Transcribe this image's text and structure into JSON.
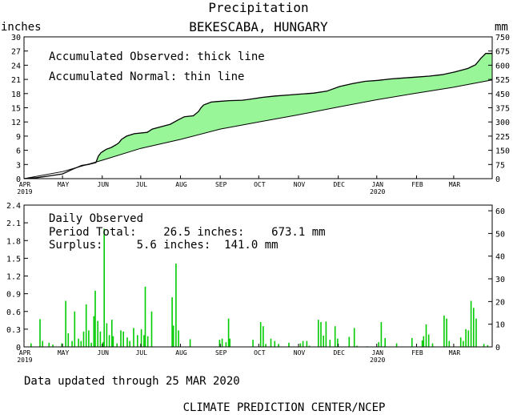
{
  "chart_data": [
    {
      "type": "area",
      "title": "Precipitation",
      "subtitle": "BEKESCABA, HUNGARY",
      "ylabel_left": "inches",
      "ylabel_right": "mm",
      "ylim": [
        0,
        30
      ],
      "y2lim": [
        0,
        750
      ],
      "yticks": [
        "0",
        "3",
        "6",
        "9",
        "12",
        "15",
        "18",
        "21",
        "24",
        "27",
        "30"
      ],
      "y2ticks": [
        "0",
        "75",
        "150",
        "225",
        "300",
        "375",
        "450",
        "525",
        "600",
        "675",
        "750"
      ],
      "annotations": [
        "Accumulated Observed: thick line",
        "Accumulated Normal: thin line"
      ],
      "months": [
        "APR",
        "MAY",
        "JUN",
        "JUL",
        "AUG",
        "SEP",
        "OCT",
        "NOV",
        "DEC",
        "JAN",
        "FEB",
        "MAR"
      ],
      "year_labels": [
        {
          "month_index": 0,
          "text": "2019"
        },
        {
          "month_index": 9,
          "text": "2020"
        }
      ],
      "x_unit": "day of period (0 = 1 Apr 2019)",
      "x_max": 365,
      "observed": [
        [
          0,
          0
        ],
        [
          10,
          0.2
        ],
        [
          20,
          0.6
        ],
        [
          30,
          1.0
        ],
        [
          38,
          2.0
        ],
        [
          45,
          2.8
        ],
        [
          50,
          3.0
        ],
        [
          56,
          3.4
        ],
        [
          58,
          4.8
        ],
        [
          60,
          5.5
        ],
        [
          64,
          6.2
        ],
        [
          68,
          6.6
        ],
        [
          72,
          7.2
        ],
        [
          74,
          7.6
        ],
        [
          76,
          8.3
        ],
        [
          80,
          9.0
        ],
        [
          86,
          9.5
        ],
        [
          96,
          9.8
        ],
        [
          100,
          10.5
        ],
        [
          107,
          11.0
        ],
        [
          114,
          11.5
        ],
        [
          120,
          12.4
        ],
        [
          125,
          13.1
        ],
        [
          132,
          13.3
        ],
        [
          136,
          14.2
        ],
        [
          138,
          15.0
        ],
        [
          140,
          15.6
        ],
        [
          146,
          16.2
        ],
        [
          150,
          16.3
        ],
        [
          160,
          16.5
        ],
        [
          170,
          16.6
        ],
        [
          176,
          16.8
        ],
        [
          186,
          17.2
        ],
        [
          196,
          17.5
        ],
        [
          206,
          17.7
        ],
        [
          216,
          17.9
        ],
        [
          226,
          18.1
        ],
        [
          236,
          18.5
        ],
        [
          246,
          19.5
        ],
        [
          256,
          20.1
        ],
        [
          266,
          20.6
        ],
        [
          276,
          20.8
        ],
        [
          286,
          21.1
        ],
        [
          296,
          21.3
        ],
        [
          306,
          21.5
        ],
        [
          316,
          21.7
        ],
        [
          326,
          22.0
        ],
        [
          336,
          22.6
        ],
        [
          346,
          23.3
        ],
        [
          352,
          24.1
        ],
        [
          356,
          25.4
        ],
        [
          360,
          26.5
        ],
        [
          365,
          26.5
        ]
      ],
      "normal": [
        [
          0,
          0
        ],
        [
          30,
          1.5
        ],
        [
          61,
          3.9
        ],
        [
          91,
          6.4
        ],
        [
          122,
          8.3
        ],
        [
          153,
          10.5
        ],
        [
          183,
          12.0
        ],
        [
          214,
          13.5
        ],
        [
          244,
          15.1
        ],
        [
          275,
          16.7
        ],
        [
          306,
          18.1
        ],
        [
          334,
          19.3
        ],
        [
          365,
          20.9
        ]
      ]
    },
    {
      "type": "bar",
      "title": "Daily Observed",
      "ylim": [
        0,
        2.4
      ],
      "y2lim": [
        0,
        62.5
      ],
      "yticks": [
        "0",
        "0.3",
        "0.6",
        "0.9",
        "1.2",
        "1.5",
        "1.8",
        "2.1",
        "2.4"
      ],
      "y2ticks": [
        "0",
        "10",
        "20",
        "30",
        "40",
        "50",
        "60"
      ],
      "annotation_lines": [
        "Daily Observed",
        "Period Total:    26.5 inches:    673.1 mm",
        "Surplus:     5.6 inches:  141.0 mm"
      ],
      "months": [
        "APR",
        "MAY",
        "JUN",
        "JUL",
        "AUG",
        "SEP",
        "OCT",
        "NOV",
        "DEC",
        "JAN",
        "FEB",
        "MAR"
      ],
      "year_labels": [
        {
          "month_index": 0,
          "text": "2019"
        },
        {
          "month_index": 9,
          "text": "2020"
        }
      ],
      "x_unit": "day of period (0 = 1 Apr 2019)",
      "x_max": 365,
      "values": [
        [
          5,
          0.06
        ],
        [
          12,
          0.47
        ],
        [
          14,
          0.1
        ],
        [
          19,
          0.07
        ],
        [
          22,
          0.04
        ],
        [
          29,
          0.06
        ],
        [
          32,
          0.78
        ],
        [
          34,
          0.23
        ],
        [
          37,
          0.1
        ],
        [
          39,
          0.6
        ],
        [
          42,
          0.14
        ],
        [
          44,
          0.1
        ],
        [
          46,
          0.26
        ],
        [
          48,
          0.72
        ],
        [
          50,
          0.28
        ],
        [
          52,
          0.07
        ],
        [
          54,
          0.52
        ],
        [
          55,
          0.95
        ],
        [
          57,
          0.44
        ],
        [
          59,
          0.26
        ],
        [
          61,
          0.08
        ],
        [
          62,
          2.0
        ],
        [
          64,
          0.4
        ],
        [
          66,
          0.2
        ],
        [
          68,
          0.46
        ],
        [
          69,
          0.18
        ],
        [
          72,
          0.06
        ],
        [
          75,
          0.28
        ],
        [
          77,
          0.26
        ],
        [
          80,
          0.16
        ],
        [
          82,
          0.1
        ],
        [
          85,
          0.32
        ],
        [
          88,
          0.2
        ],
        [
          91,
          0.3
        ],
        [
          93,
          0.2
        ],
        [
          94,
          1.02
        ],
        [
          96,
          0.18
        ],
        [
          99,
          0.6
        ],
        [
          115,
          0.84
        ],
        [
          116,
          0.36
        ],
        [
          118,
          1.41
        ],
        [
          120,
          0.28
        ],
        [
          129,
          0.13
        ],
        [
          152,
          0.12
        ],
        [
          154,
          0.14
        ],
        [
          157,
          0.08
        ],
        [
          159,
          0.48
        ],
        [
          160,
          0.14
        ],
        [
          178,
          0.12
        ],
        [
          184,
          0.42
        ],
        [
          186,
          0.35
        ],
        [
          188,
          0.05
        ],
        [
          192,
          0.14
        ],
        [
          195,
          0.1
        ],
        [
          198,
          0.05
        ],
        [
          206,
          0.07
        ],
        [
          215,
          0.06
        ],
        [
          217,
          0.1
        ],
        [
          220,
          0.1
        ],
        [
          222,
          0.02
        ],
        [
          229,
          0.46
        ],
        [
          231,
          0.42
        ],
        [
          233,
          0.19
        ],
        [
          235,
          0.43
        ],
        [
          238,
          0.12
        ],
        [
          242,
          0.35
        ],
        [
          244,
          0.14
        ],
        [
          253,
          0.17
        ],
        [
          257,
          0.32
        ],
        [
          259,
          0.02
        ],
        [
          267,
          0.01
        ],
        [
          276,
          0.08
        ],
        [
          278,
          0.42
        ],
        [
          281,
          0.15
        ],
        [
          290,
          0.06
        ],
        [
          302,
          0.15
        ],
        [
          310,
          0.11
        ],
        [
          311,
          0.18
        ],
        [
          313,
          0.38
        ],
        [
          315,
          0.21
        ],
        [
          318,
          0.06
        ],
        [
          327,
          0.53
        ],
        [
          329,
          0.48
        ],
        [
          331,
          0.1
        ],
        [
          340,
          0.16
        ],
        [
          342,
          0.1
        ],
        [
          344,
          0.3
        ],
        [
          346,
          0.28
        ],
        [
          348,
          0.78
        ],
        [
          350,
          0.66
        ],
        [
          352,
          0.48
        ],
        [
          358,
          0.05
        ],
        [
          361,
          0.03
        ]
      ]
    }
  ],
  "footer": {
    "updated": "Data updated through 25 MAR 2020",
    "credit": "CLIMATE PREDICTION CENTER/NCEP"
  },
  "colors": {
    "fill": "#98f598",
    "bar": "#00cc00",
    "line": "#000000"
  }
}
